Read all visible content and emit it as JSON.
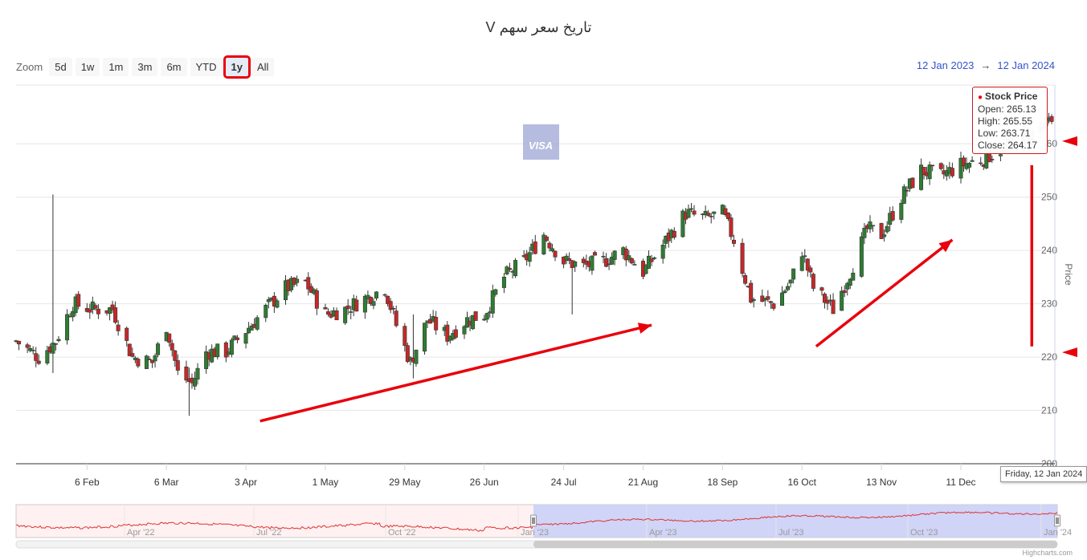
{
  "title": "تاریخ سعر سهم V",
  "zoom": {
    "label": "Zoom",
    "buttons": [
      "5d",
      "1w",
      "1m",
      "3m",
      "6m",
      "YTD",
      "1y",
      "All"
    ],
    "selected": "1y"
  },
  "range": {
    "from": "12 Jan 2023",
    "arrow": "→",
    "to": "12 Jan 2024"
  },
  "watermark": "VISA",
  "tooltip": {
    "series": "Stock Price",
    "open": "Open: 265.13",
    "high": "High: 265.55",
    "low": "Low: 263.71",
    "close": "Close: 264.17"
  },
  "hover_date": "Friday, 12 Jan 2024",
  "credits": "Highcharts.com",
  "colors": {
    "up": "#2e7d32",
    "down": "#c62828",
    "accent": "#e8000b",
    "link": "#3355cc",
    "navigator": "#c8cdf6"
  },
  "chart_data": {
    "type": "candlestick",
    "series_name": "Stock Price",
    "ylabel": "Price",
    "ylim": [
      200,
      265
    ],
    "yticks": [
      200,
      210,
      220,
      230,
      240,
      250,
      260
    ],
    "ytick_labels": [
      "200",
      "210",
      "220",
      "230",
      "240",
      "250",
      "260"
    ],
    "x_range": [
      "2023-01-12",
      "2024-01-12"
    ],
    "xticks": [
      {
        "date": "2023-02-06",
        "label": "6 Feb"
      },
      {
        "date": "2023-03-06",
        "label": "6 Mar"
      },
      {
        "date": "2023-04-03",
        "label": "3 Apr"
      },
      {
        "date": "2023-05-01",
        "label": "1 May"
      },
      {
        "date": "2023-05-29",
        "label": "29 May"
      },
      {
        "date": "2023-06-26",
        "label": "26 Jun"
      },
      {
        "date": "2023-07-24",
        "label": "24 Jul"
      },
      {
        "date": "2023-08-21",
        "label": "21 Aug"
      },
      {
        "date": "2023-09-18",
        "label": "18 Sep"
      },
      {
        "date": "2023-10-16",
        "label": "16 Oct"
      },
      {
        "date": "2023-11-13",
        "label": "13 Nov"
      },
      {
        "date": "2023-12-11",
        "label": "11 Dec"
      }
    ],
    "closes": [
      {
        "date": "2023-01-12",
        "close": 223
      },
      {
        "date": "2023-01-20",
        "close": 220
      },
      {
        "date": "2023-01-26",
        "close": 223
      },
      {
        "date": "2023-02-01",
        "close": 230
      },
      {
        "date": "2023-02-08",
        "close": 229
      },
      {
        "date": "2023-02-15",
        "close": 229
      },
      {
        "date": "2023-02-22",
        "close": 220
      },
      {
        "date": "2023-03-01",
        "close": 219
      },
      {
        "date": "2023-03-06",
        "close": 226
      },
      {
        "date": "2023-03-10",
        "close": 217
      },
      {
        "date": "2023-03-15",
        "close": 215
      },
      {
        "date": "2023-03-20",
        "close": 221
      },
      {
        "date": "2023-03-27",
        "close": 221
      },
      {
        "date": "2023-04-03",
        "close": 225
      },
      {
        "date": "2023-04-10",
        "close": 229
      },
      {
        "date": "2023-04-17",
        "close": 233
      },
      {
        "date": "2023-04-24",
        "close": 234
      },
      {
        "date": "2023-05-01",
        "close": 228
      },
      {
        "date": "2023-05-08",
        "close": 229
      },
      {
        "date": "2023-05-15",
        "close": 231
      },
      {
        "date": "2023-05-22",
        "close": 233
      },
      {
        "date": "2023-05-26",
        "close": 226
      },
      {
        "date": "2023-05-31",
        "close": 219
      },
      {
        "date": "2023-06-06",
        "close": 227
      },
      {
        "date": "2023-06-13",
        "close": 224
      },
      {
        "date": "2023-06-20",
        "close": 227
      },
      {
        "date": "2023-06-26",
        "close": 228
      },
      {
        "date": "2023-07-03",
        "close": 235
      },
      {
        "date": "2023-07-10",
        "close": 238
      },
      {
        "date": "2023-07-17",
        "close": 243
      },
      {
        "date": "2023-07-24",
        "close": 238
      },
      {
        "date": "2023-07-31",
        "close": 237
      },
      {
        "date": "2023-08-07",
        "close": 238
      },
      {
        "date": "2023-08-14",
        "close": 240
      },
      {
        "date": "2023-08-21",
        "close": 236
      },
      {
        "date": "2023-08-28",
        "close": 241
      },
      {
        "date": "2023-09-05",
        "close": 247
      },
      {
        "date": "2023-09-12",
        "close": 246
      },
      {
        "date": "2023-09-18",
        "close": 247
      },
      {
        "date": "2023-09-22",
        "close": 242
      },
      {
        "date": "2023-09-28",
        "close": 231
      },
      {
        "date": "2023-10-06",
        "close": 230
      },
      {
        "date": "2023-10-12",
        "close": 234
      },
      {
        "date": "2023-10-16",
        "close": 240
      },
      {
        "date": "2023-10-20",
        "close": 233
      },
      {
        "date": "2023-10-27",
        "close": 229
      },
      {
        "date": "2023-11-02",
        "close": 236
      },
      {
        "date": "2023-11-08",
        "close": 244
      },
      {
        "date": "2023-11-13",
        "close": 243
      },
      {
        "date": "2023-11-20",
        "close": 250
      },
      {
        "date": "2023-11-27",
        "close": 255
      },
      {
        "date": "2023-12-04",
        "close": 254
      },
      {
        "date": "2023-12-11",
        "close": 256
      },
      {
        "date": "2023-12-18",
        "close": 257
      },
      {
        "date": "2024-01-05",
        "close": 262
      },
      {
        "date": "2024-01-12",
        "close": 264.17
      }
    ],
    "wick_outliers": [
      {
        "date": "2023-01-25",
        "high": 250.5,
        "low": 217
      },
      {
        "date": "2023-03-14",
        "high": 218,
        "low": 209
      },
      {
        "date": "2023-07-27",
        "high": 234,
        "low": 228
      },
      {
        "date": "2023-06-01",
        "high": 228,
        "low": 216
      }
    ],
    "last_point": {
      "date": "2024-01-12",
      "open": 265.13,
      "high": 265.55,
      "low": 263.71,
      "close": 264.17
    },
    "navigator": {
      "xtick_labels": [
        "Apr '22",
        "Jul '22",
        "Oct '22",
        "Jan '23",
        "Apr '23",
        "Jul '23",
        "Oct '23",
        "Jan '24"
      ],
      "selected_from_label": "Jan '23",
      "selected_to_label": "Jan '24"
    },
    "annotations": [
      {
        "type": "arrow",
        "from": [
          "2023-04-08",
          208
        ],
        "to": [
          "2023-08-24",
          226
        ]
      },
      {
        "type": "arrow",
        "from": [
          "2023-10-21",
          222
        ],
        "to": [
          "2023-12-08",
          242
        ]
      },
      {
        "type": "line",
        "from": [
          "2024-01-05",
          222
        ],
        "to": [
          "2024-01-05",
          256
        ]
      },
      {
        "type": "marker",
        "y": 260.5,
        "note": "right-edge pointer"
      },
      {
        "type": "marker",
        "y": 220.9,
        "note": "right-edge pointer"
      }
    ]
  }
}
